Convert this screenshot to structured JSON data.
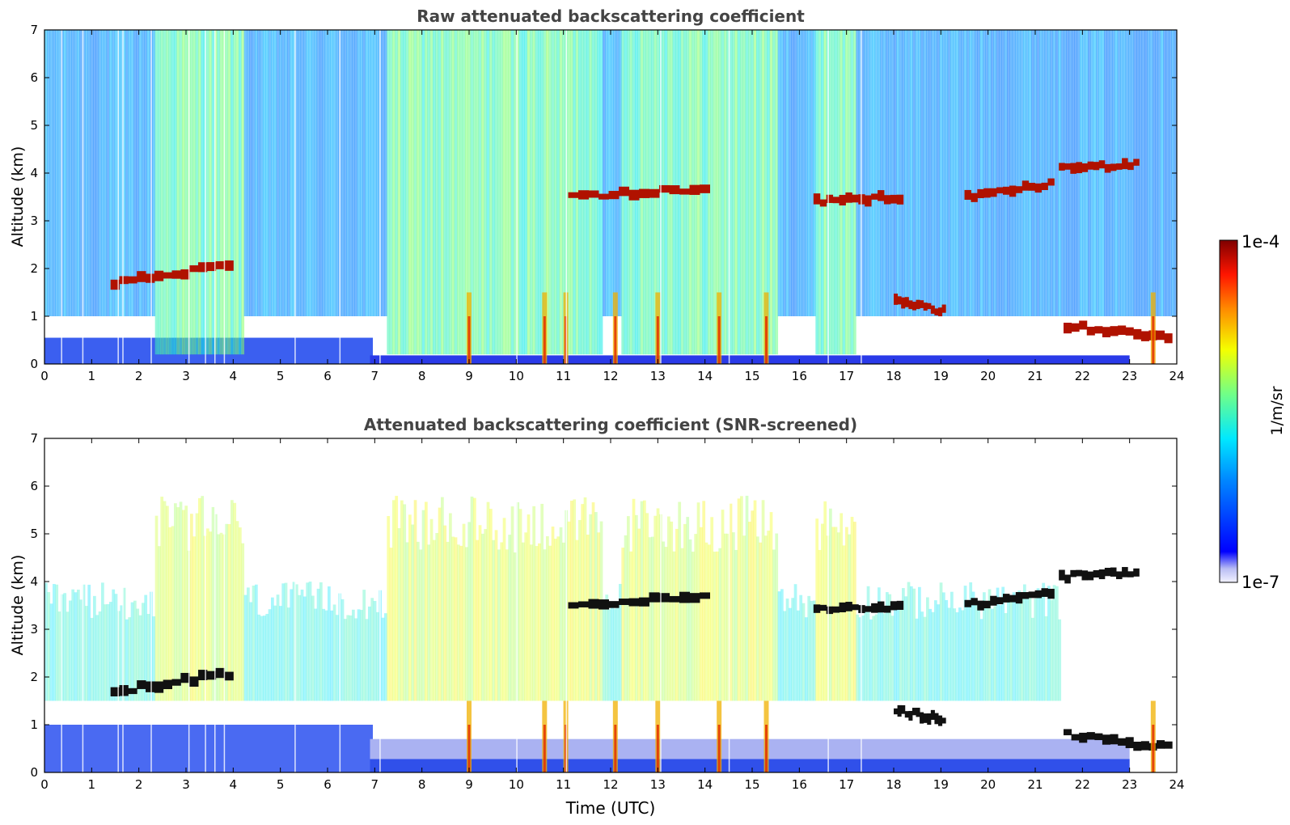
{
  "colorbar": {
    "max_label": "1e-4",
    "min_label": "1e-7",
    "unit_label": "1/m/sr",
    "min_value": 1e-07,
    "max_value": 0.0001,
    "scale": "log",
    "colormap": "jet"
  },
  "xlabel": "Time (UTC)",
  "chart_data": [
    {
      "type": "heatmap",
      "title": "Raw attenuated backscattering coefficient",
      "xlabel": "",
      "ylabel": "Altitude (km)",
      "xlim": [
        0,
        24
      ],
      "ylim": [
        0,
        7
      ],
      "x_ticks": [
        "0",
        "1",
        "2",
        "3",
        "4",
        "5",
        "6",
        "7",
        "8",
        "9",
        "10",
        "11",
        "12",
        "13",
        "14",
        "15",
        "16",
        "17",
        "18",
        "19",
        "20",
        "21",
        "22",
        "23",
        "24"
      ],
      "y_ticks": [
        "0",
        "1",
        "2",
        "3",
        "4",
        "5",
        "6",
        "7"
      ],
      "screened": false,
      "features": [
        {
          "name": "cloud layer",
          "t_start": 1.4,
          "t_end": 4.0,
          "alt_start": 1.7,
          "alt_end": 2.1
        },
        {
          "name": "cloud layer",
          "t_start": 11.1,
          "t_end": 14.1,
          "alt_start": 3.5,
          "alt_end": 3.7
        },
        {
          "name": "cloud layer",
          "t_start": 16.3,
          "t_end": 18.2,
          "alt_start": 3.4,
          "alt_end": 3.5
        },
        {
          "name": "cloud layer",
          "t_start": 19.5,
          "t_end": 21.4,
          "alt_start": 3.5,
          "alt_end": 3.8
        },
        {
          "name": "cloud layer",
          "t_start": 21.5,
          "t_end": 23.2,
          "alt_start": 4.1,
          "alt_end": 4.2
        },
        {
          "name": "cloud layer",
          "t_start": 18.0,
          "t_end": 19.1,
          "alt_start": 1.3,
          "alt_end": 1.1
        },
        {
          "name": "cloud layer",
          "t_start": 21.6,
          "t_end": 23.9,
          "alt_start": 0.8,
          "alt_end": 0.5
        }
      ]
    },
    {
      "type": "heatmap",
      "title": "Attenuated backscattering coefficient (SNR-screened)",
      "xlabel": "Time (UTC)",
      "ylabel": "Altitude (km)",
      "xlim": [
        0,
        24
      ],
      "ylim": [
        0,
        7
      ],
      "x_ticks": [
        "0",
        "1",
        "2",
        "3",
        "4",
        "5",
        "6",
        "7",
        "8",
        "9",
        "10",
        "11",
        "12",
        "13",
        "14",
        "15",
        "16",
        "17",
        "18",
        "19",
        "20",
        "21",
        "22",
        "23",
        "24"
      ],
      "y_ticks": [
        "0",
        "1",
        "2",
        "3",
        "4",
        "5",
        "6",
        "7"
      ],
      "screened": true,
      "features": [
        {
          "name": "cloud layer",
          "t_start": 1.4,
          "t_end": 4.0,
          "alt_start": 1.7,
          "alt_end": 2.1
        },
        {
          "name": "cloud layer",
          "t_start": 11.1,
          "t_end": 14.1,
          "alt_start": 3.5,
          "alt_end": 3.7
        },
        {
          "name": "cloud layer",
          "t_start": 16.3,
          "t_end": 18.2,
          "alt_start": 3.4,
          "alt_end": 3.5
        },
        {
          "name": "cloud layer",
          "t_start": 19.5,
          "t_end": 21.4,
          "alt_start": 3.5,
          "alt_end": 3.8
        },
        {
          "name": "cloud layer",
          "t_start": 21.5,
          "t_end": 23.2,
          "alt_start": 4.1,
          "alt_end": 4.2
        },
        {
          "name": "cloud layer",
          "t_start": 18.0,
          "t_end": 19.1,
          "alt_start": 1.3,
          "alt_end": 1.1
        },
        {
          "name": "cloud layer",
          "t_start": 21.6,
          "t_end": 23.9,
          "alt_start": 0.8,
          "alt_end": 0.5
        }
      ]
    }
  ]
}
